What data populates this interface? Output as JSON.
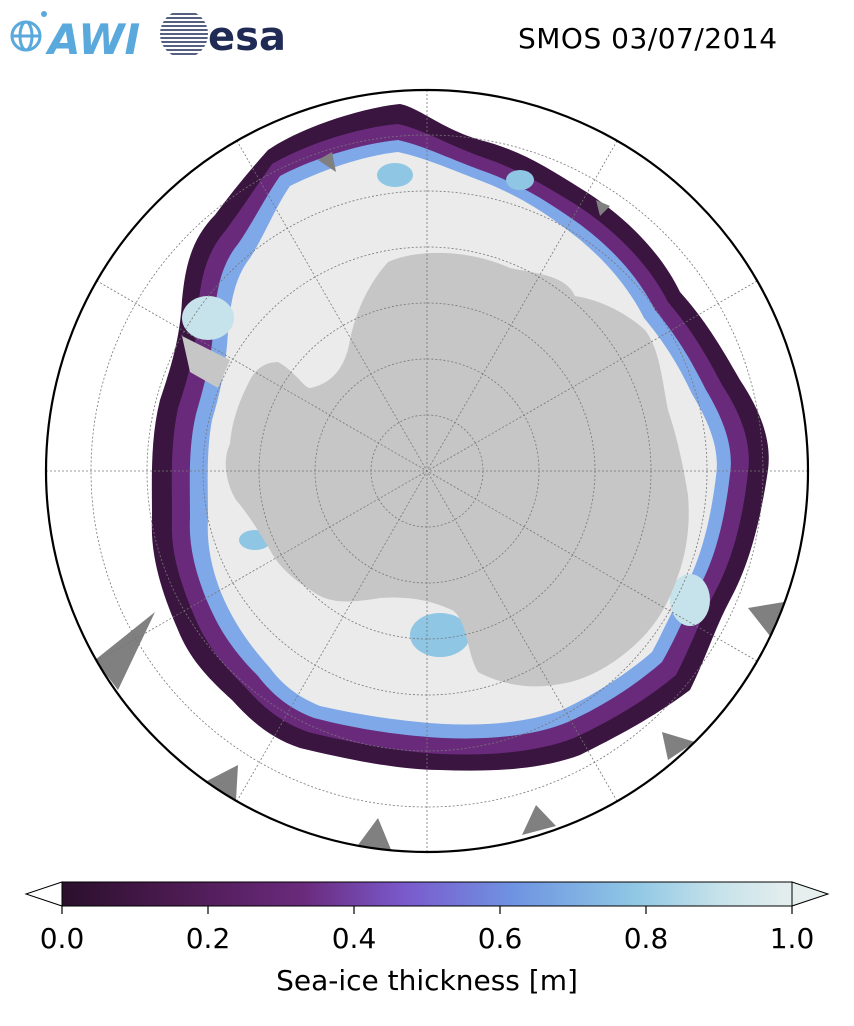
{
  "header": {
    "awi_logo_text": "AWI",
    "esa_logo_text": "esa",
    "title": "SMOS 03/07/2014"
  },
  "map": {
    "projection": "south-polar-stereographic",
    "graticule": "dashed",
    "land_color": "#c6c6c6",
    "thick_ice_color": "#ebebeb",
    "ocean_color": "#ffffff",
    "mask_color": "#808080"
  },
  "colorbar": {
    "label": "Sea-ice thickness [m]",
    "ticks": [
      "0.0",
      "0.2",
      "0.4",
      "0.6",
      "0.8",
      "1.0"
    ],
    "min": 0.0,
    "max": 1.0,
    "extend": "both",
    "colors": [
      "#2b0f2c",
      "#4a1a4f",
      "#6a2a7c",
      "#7a5acc",
      "#6f94e2",
      "#8ec6e4",
      "#c6e2ea",
      "#e6eeee"
    ]
  }
}
